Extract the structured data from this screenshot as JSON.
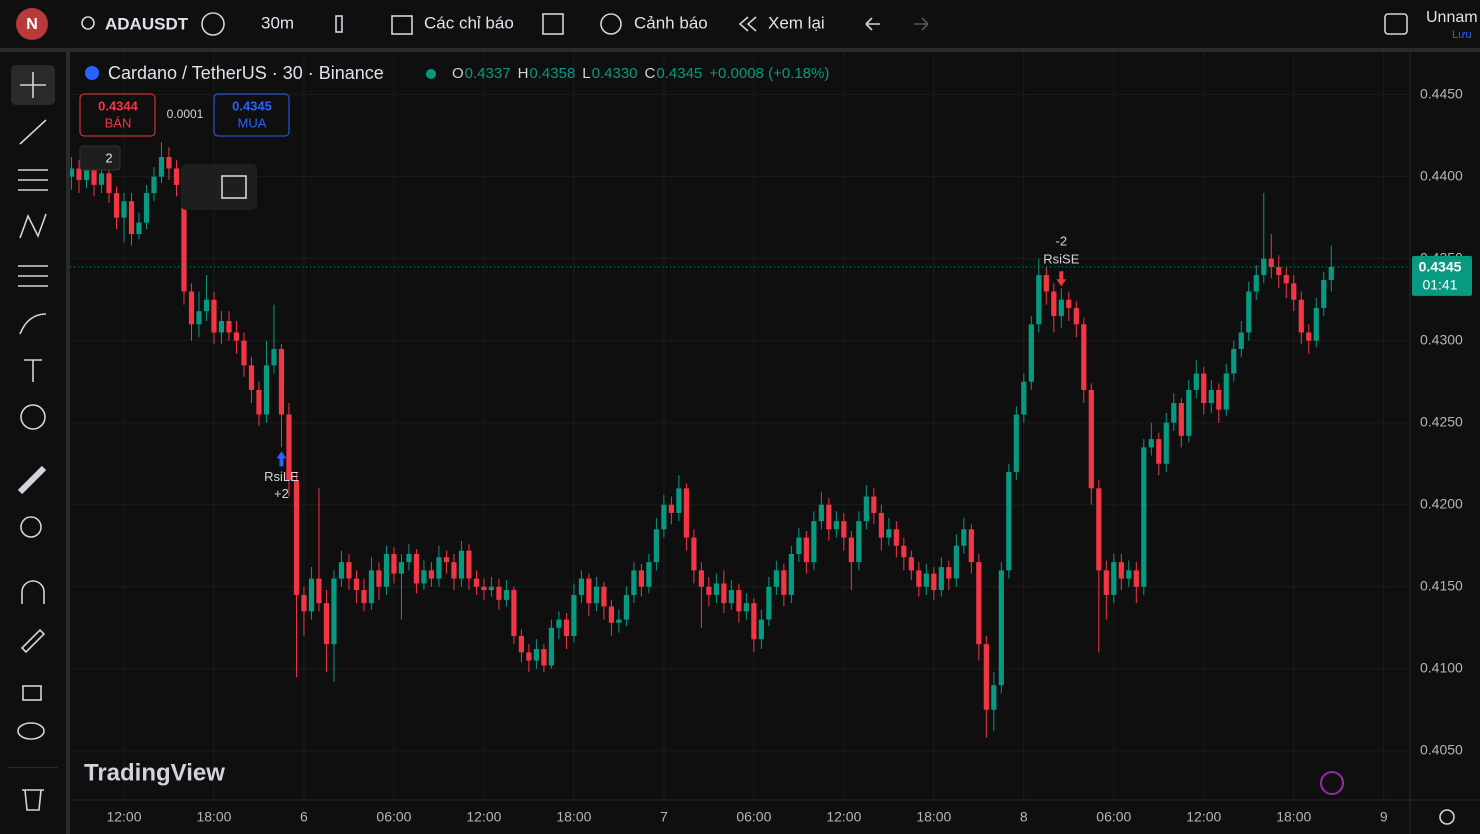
{
  "toolbar": {
    "avatar": "N",
    "symbol": "ADAUSDT",
    "interval": "30m",
    "indicators": "Các chỉ báo",
    "alerts": "Cảnh báo",
    "replay": "Xem lại",
    "layout_name": "Unnam",
    "save": "Lưu"
  },
  "chart_data": {
    "type": "candlestick",
    "title": "Cardano / TetherUS · 30 · Binance",
    "ohlc": [
      {
        "key": "O",
        "value": "0.4337"
      },
      {
        "key": "H",
        "value": "0.4358"
      },
      {
        "key": "L",
        "value": "0.4330"
      },
      {
        "key": "C",
        "value": "0.4345"
      }
    ],
    "change": "+0.0008 (+0.18%)",
    "colors": {
      "up": "#089981",
      "down": "#f23645"
    },
    "candles": [
      [
        0.44,
        0.4412,
        0.4392,
        0.4405
      ],
      [
        0.4405,
        0.441,
        0.439,
        0.4398
      ],
      [
        0.4398,
        0.4413,
        0.4393,
        0.4408
      ],
      [
        0.4408,
        0.4412,
        0.4388,
        0.4395
      ],
      [
        0.4395,
        0.4408,
        0.439,
        0.4402
      ],
      [
        0.4402,
        0.4406,
        0.4384,
        0.439
      ],
      [
        0.439,
        0.4394,
        0.4368,
        0.4375
      ],
      [
        0.4375,
        0.439,
        0.436,
        0.4385
      ],
      [
        0.4385,
        0.439,
        0.4358,
        0.4365
      ],
      [
        0.4365,
        0.4378,
        0.4362,
        0.4372
      ],
      [
        0.4372,
        0.4395,
        0.4368,
        0.439
      ],
      [
        0.439,
        0.4406,
        0.4385,
        0.44
      ],
      [
        0.44,
        0.4421,
        0.4396,
        0.4412
      ],
      [
        0.4412,
        0.4418,
        0.4398,
        0.4405
      ],
      [
        0.4405,
        0.441,
        0.4388,
        0.4395
      ],
      [
        0.4395,
        0.4398,
        0.4322,
        0.433
      ],
      [
        0.433,
        0.4335,
        0.43,
        0.431
      ],
      [
        0.431,
        0.433,
        0.4302,
        0.4318
      ],
      [
        0.4318,
        0.434,
        0.4312,
        0.4325
      ],
      [
        0.4325,
        0.433,
        0.4298,
        0.4305
      ],
      [
        0.4305,
        0.4318,
        0.4298,
        0.4312
      ],
      [
        0.4312,
        0.4318,
        0.43,
        0.4305
      ],
      [
        0.4305,
        0.4312,
        0.4292,
        0.43
      ],
      [
        0.43,
        0.4305,
        0.4278,
        0.4285
      ],
      [
        0.4285,
        0.429,
        0.4262,
        0.427
      ],
      [
        0.427,
        0.4275,
        0.4248,
        0.4255
      ],
      [
        0.4255,
        0.43,
        0.425,
        0.4285
      ],
      [
        0.4285,
        0.4322,
        0.428,
        0.4295
      ],
      [
        0.4295,
        0.4298,
        0.4235,
        0.4255
      ],
      [
        0.4255,
        0.4262,
        0.4205,
        0.4215
      ],
      [
        0.4215,
        0.422,
        0.4095,
        0.4145
      ],
      [
        0.4145,
        0.415,
        0.412,
        0.4135
      ],
      [
        0.4135,
        0.4162,
        0.413,
        0.4155
      ],
      [
        0.4155,
        0.421,
        0.4135,
        0.414
      ],
      [
        0.414,
        0.4148,
        0.4098,
        0.4115
      ],
      [
        0.4115,
        0.416,
        0.4092,
        0.4155
      ],
      [
        0.4155,
        0.4172,
        0.415,
        0.4165
      ],
      [
        0.4165,
        0.417,
        0.4148,
        0.4155
      ],
      [
        0.4155,
        0.416,
        0.414,
        0.4148
      ],
      [
        0.4148,
        0.4155,
        0.4135,
        0.414
      ],
      [
        0.414,
        0.4168,
        0.4136,
        0.416
      ],
      [
        0.416,
        0.4165,
        0.4142,
        0.415
      ],
      [
        0.415,
        0.4175,
        0.4145,
        0.417
      ],
      [
        0.417,
        0.4174,
        0.4152,
        0.4158
      ],
      [
        0.4158,
        0.417,
        0.413,
        0.4165
      ],
      [
        0.4165,
        0.4176,
        0.416,
        0.417
      ],
      [
        0.417,
        0.4173,
        0.4146,
        0.4152
      ],
      [
        0.4152,
        0.4166,
        0.4148,
        0.416
      ],
      [
        0.416,
        0.4165,
        0.415,
        0.4155
      ],
      [
        0.4155,
        0.4175,
        0.415,
        0.4168
      ],
      [
        0.4168,
        0.4172,
        0.4158,
        0.4165
      ],
      [
        0.4165,
        0.417,
        0.4148,
        0.4155
      ],
      [
        0.4155,
        0.4178,
        0.415,
        0.4172
      ],
      [
        0.4172,
        0.4176,
        0.4148,
        0.4155
      ],
      [
        0.4155,
        0.416,
        0.4145,
        0.415
      ],
      [
        0.415,
        0.4155,
        0.4142,
        0.4148
      ],
      [
        0.4148,
        0.4156,
        0.4144,
        0.415
      ],
      [
        0.415,
        0.4155,
        0.4136,
        0.4142
      ],
      [
        0.4142,
        0.4154,
        0.4138,
        0.4148
      ],
      [
        0.4148,
        0.415,
        0.4115,
        0.412
      ],
      [
        0.412,
        0.4124,
        0.4104,
        0.411
      ],
      [
        0.411,
        0.4115,
        0.4098,
        0.4105
      ],
      [
        0.4105,
        0.4118,
        0.41,
        0.4112
      ],
      [
        0.4112,
        0.4115,
        0.4098,
        0.4102
      ],
      [
        0.4102,
        0.413,
        0.41,
        0.4125
      ],
      [
        0.4125,
        0.4135,
        0.4118,
        0.413
      ],
      [
        0.413,
        0.4134,
        0.4112,
        0.412
      ],
      [
        0.412,
        0.4152,
        0.4116,
        0.4145
      ],
      [
        0.4145,
        0.416,
        0.414,
        0.4155
      ],
      [
        0.4155,
        0.4158,
        0.4132,
        0.414
      ],
      [
        0.414,
        0.4156,
        0.4135,
        0.415
      ],
      [
        0.415,
        0.4153,
        0.413,
        0.4138
      ],
      [
        0.4138,
        0.4142,
        0.412,
        0.4128
      ],
      [
        0.4128,
        0.4136,
        0.4122,
        0.413
      ],
      [
        0.413,
        0.415,
        0.4126,
        0.4145
      ],
      [
        0.4145,
        0.4165,
        0.414,
        0.416
      ],
      [
        0.416,
        0.4164,
        0.4144,
        0.415
      ],
      [
        0.415,
        0.417,
        0.4146,
        0.4165
      ],
      [
        0.4165,
        0.4192,
        0.416,
        0.4185
      ],
      [
        0.4185,
        0.4206,
        0.418,
        0.42
      ],
      [
        0.42,
        0.4205,
        0.4188,
        0.4195
      ],
      [
        0.4195,
        0.4218,
        0.419,
        0.421
      ],
      [
        0.421,
        0.4213,
        0.4172,
        0.418
      ],
      [
        0.418,
        0.4185,
        0.4152,
        0.416
      ],
      [
        0.416,
        0.4165,
        0.4125,
        0.415
      ],
      [
        0.415,
        0.4156,
        0.4138,
        0.4145
      ],
      [
        0.4145,
        0.4158,
        0.414,
        0.4152
      ],
      [
        0.4152,
        0.416,
        0.4134,
        0.414
      ],
      [
        0.414,
        0.4154,
        0.4136,
        0.4148
      ],
      [
        0.4148,
        0.4152,
        0.4128,
        0.4135
      ],
      [
        0.4135,
        0.4146,
        0.413,
        0.414
      ],
      [
        0.414,
        0.4143,
        0.411,
        0.4118
      ],
      [
        0.4118,
        0.4136,
        0.4112,
        0.413
      ],
      [
        0.413,
        0.4156,
        0.4126,
        0.415
      ],
      [
        0.415,
        0.4166,
        0.4145,
        0.416
      ],
      [
        0.416,
        0.4164,
        0.4138,
        0.4145
      ],
      [
        0.4145,
        0.4175,
        0.414,
        0.417
      ],
      [
        0.417,
        0.4186,
        0.4165,
        0.418
      ],
      [
        0.418,
        0.4184,
        0.4158,
        0.4165
      ],
      [
        0.4165,
        0.4196,
        0.416,
        0.419
      ],
      [
        0.419,
        0.4208,
        0.4185,
        0.42
      ],
      [
        0.42,
        0.4204,
        0.4178,
        0.4185
      ],
      [
        0.4185,
        0.4196,
        0.418,
        0.419
      ],
      [
        0.419,
        0.4195,
        0.4172,
        0.418
      ],
      [
        0.418,
        0.4184,
        0.4148,
        0.4165
      ],
      [
        0.4165,
        0.4196,
        0.416,
        0.419
      ],
      [
        0.419,
        0.4212,
        0.4185,
        0.4205
      ],
      [
        0.4205,
        0.421,
        0.4188,
        0.4195
      ],
      [
        0.4195,
        0.42,
        0.4172,
        0.418
      ],
      [
        0.418,
        0.4192,
        0.4175,
        0.4185
      ],
      [
        0.4185,
        0.419,
        0.4168,
        0.4175
      ],
      [
        0.4175,
        0.418,
        0.416,
        0.4168
      ],
      [
        0.4168,
        0.4172,
        0.4154,
        0.416
      ],
      [
        0.416,
        0.4165,
        0.4144,
        0.415
      ],
      [
        0.415,
        0.4164,
        0.4145,
        0.4158
      ],
      [
        0.4158,
        0.4162,
        0.4142,
        0.4148
      ],
      [
        0.4148,
        0.4168,
        0.4144,
        0.4162
      ],
      [
        0.4162,
        0.4166,
        0.4148,
        0.4155
      ],
      [
        0.4155,
        0.4182,
        0.415,
        0.4175
      ],
      [
        0.4175,
        0.4192,
        0.417,
        0.4185
      ],
      [
        0.4185,
        0.4188,
        0.4158,
        0.4165
      ],
      [
        0.4165,
        0.417,
        0.4105,
        0.4115
      ],
      [
        0.4115,
        0.412,
        0.4058,
        0.4075
      ],
      [
        0.4075,
        0.4098,
        0.4062,
        0.409
      ],
      [
        0.409,
        0.4165,
        0.4085,
        0.416
      ],
      [
        0.416,
        0.4225,
        0.4155,
        0.422
      ],
      [
        0.422,
        0.426,
        0.4215,
        0.4255
      ],
      [
        0.4255,
        0.428,
        0.425,
        0.4275
      ],
      [
        0.4275,
        0.4315,
        0.427,
        0.431
      ],
      [
        0.431,
        0.435,
        0.4305,
        0.434
      ],
      [
        0.434,
        0.4345,
        0.4322,
        0.433
      ],
      [
        0.433,
        0.4335,
        0.4305,
        0.4315
      ],
      [
        0.4315,
        0.4332,
        0.4308,
        0.4325
      ],
      [
        0.4325,
        0.433,
        0.4312,
        0.432
      ],
      [
        0.432,
        0.4324,
        0.4302,
        0.431
      ],
      [
        0.431,
        0.4314,
        0.4262,
        0.427
      ],
      [
        0.427,
        0.4274,
        0.42,
        0.421
      ],
      [
        0.421,
        0.4215,
        0.411,
        0.416
      ],
      [
        0.416,
        0.4166,
        0.413,
        0.4145
      ],
      [
        0.4145,
        0.417,
        0.414,
        0.4165
      ],
      [
        0.4165,
        0.417,
        0.4148,
        0.4155
      ],
      [
        0.4155,
        0.4166,
        0.415,
        0.416
      ],
      [
        0.416,
        0.4165,
        0.414,
        0.415
      ],
      [
        0.415,
        0.424,
        0.4145,
        0.4235
      ],
      [
        0.4235,
        0.425,
        0.423,
        0.424
      ],
      [
        0.424,
        0.4244,
        0.4218,
        0.4225
      ],
      [
        0.4225,
        0.4256,
        0.422,
        0.425
      ],
      [
        0.425,
        0.4268,
        0.4245,
        0.4262
      ],
      [
        0.4262,
        0.4265,
        0.4235,
        0.4242
      ],
      [
        0.4242,
        0.4276,
        0.4238,
        0.427
      ],
      [
        0.427,
        0.4288,
        0.4265,
        0.428
      ],
      [
        0.428,
        0.4284,
        0.4255,
        0.4262
      ],
      [
        0.4262,
        0.4276,
        0.4256,
        0.427
      ],
      [
        0.427,
        0.4274,
        0.425,
        0.4258
      ],
      [
        0.4258,
        0.4286,
        0.4254,
        0.428
      ],
      [
        0.428,
        0.43,
        0.4275,
        0.4295
      ],
      [
        0.4295,
        0.4312,
        0.429,
        0.4305
      ],
      [
        0.4305,
        0.4336,
        0.43,
        0.433
      ],
      [
        0.433,
        0.4346,
        0.4325,
        0.434
      ],
      [
        0.434,
        0.439,
        0.4335,
        0.435
      ],
      [
        0.435,
        0.4365,
        0.4338,
        0.4345
      ],
      [
        0.4345,
        0.4352,
        0.4332,
        0.434
      ],
      [
        0.434,
        0.4345,
        0.4326,
        0.4335
      ],
      [
        0.4335,
        0.434,
        0.4318,
        0.4325
      ],
      [
        0.4325,
        0.433,
        0.4298,
        0.4305
      ],
      [
        0.4305,
        0.431,
        0.4292,
        0.43
      ],
      [
        0.43,
        0.4326,
        0.4296,
        0.432
      ],
      [
        0.432,
        0.4342,
        0.4315,
        0.4337
      ],
      [
        0.4337,
        0.4358,
        0.433,
        0.4345
      ]
    ],
    "xlim": [
      -0.2,
      178.5
    ],
    "xticks": [
      {
        "value": 7,
        "label": "12:00"
      },
      {
        "value": 19,
        "label": "18:00"
      },
      {
        "value": 31,
        "label": "6"
      },
      {
        "value": 43,
        "label": "06:00"
      },
      {
        "value": 55,
        "label": "12:00"
      },
      {
        "value": 67,
        "label": "18:00"
      },
      {
        "value": 79,
        "label": "7"
      },
      {
        "value": 91,
        "label": "06:00"
      },
      {
        "value": 103,
        "label": "12:00"
      },
      {
        "value": 115,
        "label": "18:00"
      },
      {
        "value": 127,
        "label": "8"
      },
      {
        "value": 139,
        "label": "06:00"
      },
      {
        "value": 151,
        "label": "12:00"
      },
      {
        "value": 163,
        "label": "18:00"
      },
      {
        "value": 175,
        "label": "9"
      }
    ],
    "ylim": [
      0.402,
      0.4476
    ],
    "yticks": [
      {
        "value": 0.405,
        "label": "0.4050"
      },
      {
        "value": 0.41,
        "label": "0.4100"
      },
      {
        "value": 0.415,
        "label": "0.4150"
      },
      {
        "value": 0.42,
        "label": "0.4200"
      },
      {
        "value": 0.425,
        "label": "0.4250"
      },
      {
        "value": 0.43,
        "label": "0.4300"
      },
      {
        "value": 0.435,
        "label": "0.4350"
      },
      {
        "value": 0.44,
        "label": "0.4400"
      },
      {
        "value": 0.445,
        "label": "0.4450"
      }
    ],
    "grid": true,
    "last_price": {
      "value": 0.4345,
      "label": "0.4345"
    },
    "countdown": "01:41",
    "signals": [
      {
        "index": 28,
        "side": "long",
        "name": "RsiLE",
        "qty": "+2"
      },
      {
        "index": 132,
        "side": "short",
        "name": "RsiSE",
        "qty": "-2"
      }
    ]
  },
  "order_panel": {
    "sell_price": "0.4344",
    "sell_label": "BÁN",
    "spread": "0.0001",
    "buy_price": "0.4345",
    "buy_label": "MUA",
    "position_qty": "2"
  },
  "watermark": "TradingView"
}
